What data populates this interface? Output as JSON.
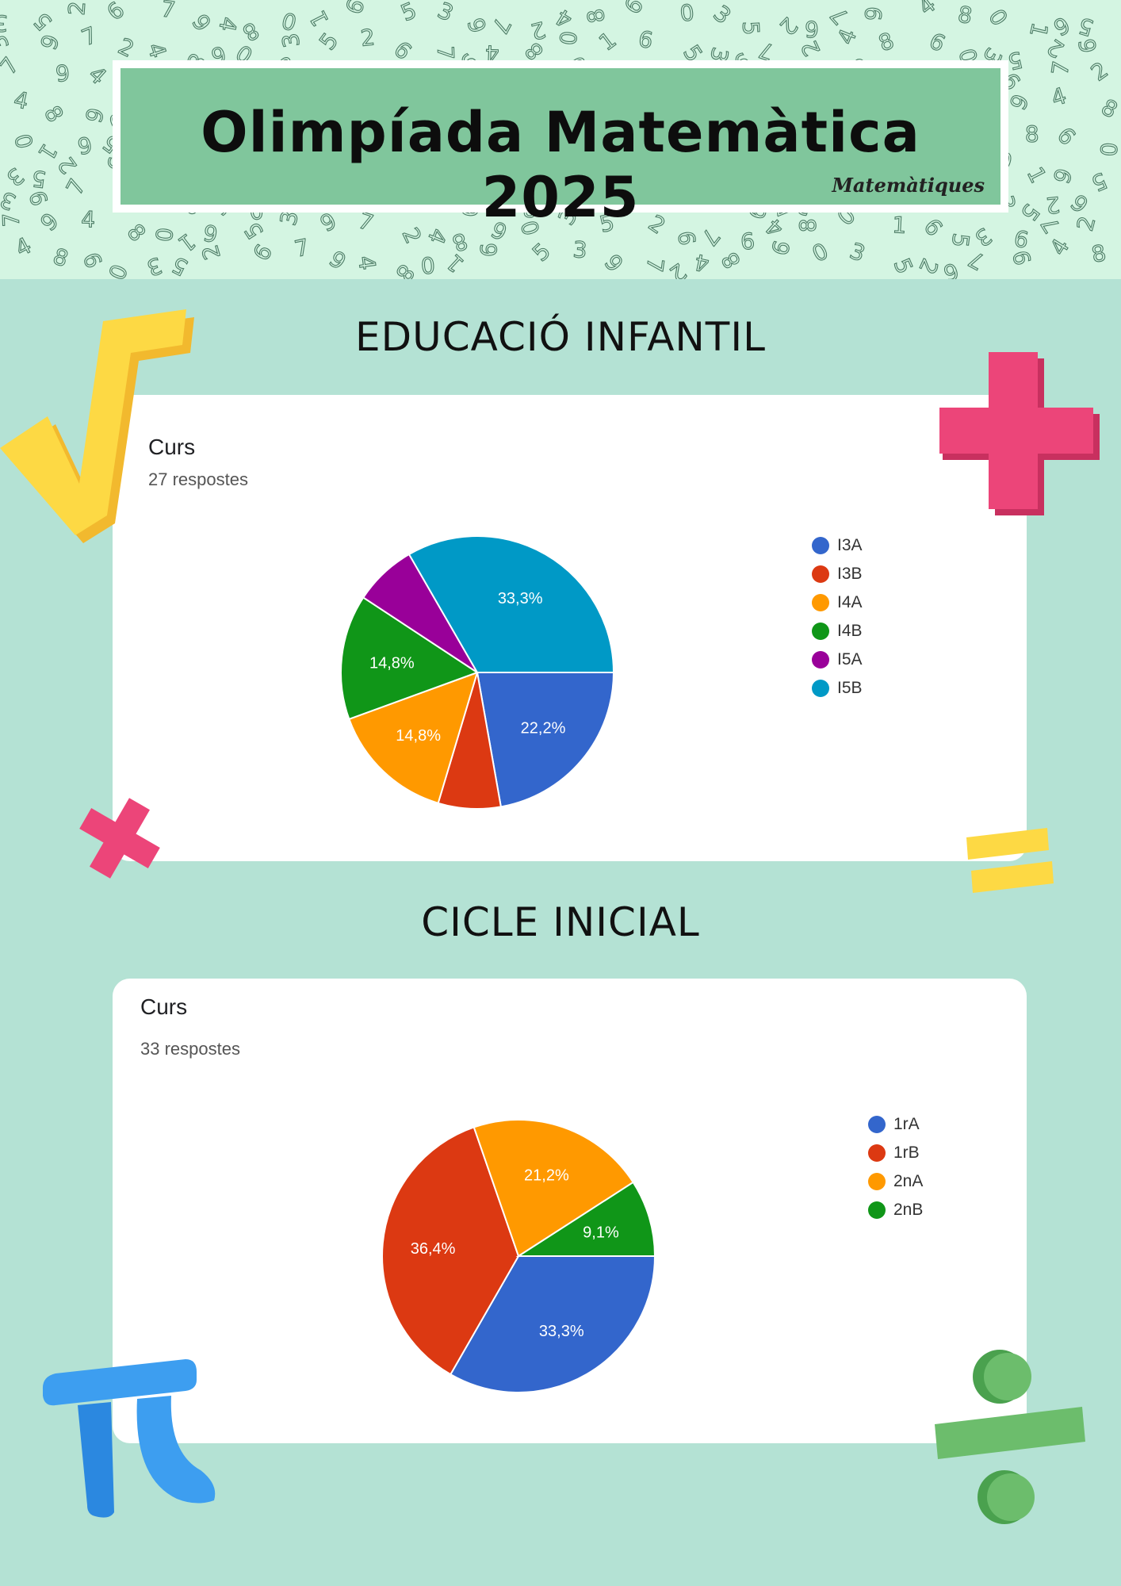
{
  "header": {
    "title": "Olimpíada Matemàtica 2025",
    "brand": "Matemàtiques",
    "bg_digits": [
      "3",
      "5",
      "2",
      "6",
      "7",
      "9",
      "4",
      "8",
      "0",
      "1",
      "6",
      "5",
      "3",
      "9",
      "7",
      "2",
      "4",
      "8",
      "6",
      "0"
    ]
  },
  "sections": [
    {
      "heading": "EDUCACIÓ INFANTIL",
      "card_title": "Curs",
      "responses": "27 respostes"
    },
    {
      "heading": "CICLE INICIAL",
      "card_title": "Curs",
      "responses": "33 respostes"
    }
  ],
  "chart_data": [
    {
      "type": "pie",
      "title": "Curs",
      "subtitle": "27 respostes",
      "legend_position": "right",
      "categories": [
        "I3A",
        "I3B",
        "I4A",
        "I4B",
        "I5A",
        "I5B"
      ],
      "values": [
        22.2,
        7.4,
        14.8,
        14.8,
        7.4,
        33.3
      ],
      "labels": [
        "22,2%",
        "",
        "14,8%",
        "14,8%",
        "",
        "33,3%"
      ],
      "colors": [
        "#3366cc",
        "#dc3912",
        "#ff9900",
        "#109618",
        "#990099",
        "#0099c6"
      ]
    },
    {
      "type": "pie",
      "title": "Curs",
      "subtitle": "33 respostes",
      "legend_position": "right",
      "categories": [
        "1rA",
        "1rB",
        "2nA",
        "2nB"
      ],
      "values": [
        33.3,
        36.4,
        21.2,
        9.1
      ],
      "labels": [
        "33,3%",
        "36,4%",
        "21,2%",
        "9,1%"
      ],
      "colors": [
        "#3366cc",
        "#dc3912",
        "#ff9900",
        "#109618"
      ]
    }
  ]
}
